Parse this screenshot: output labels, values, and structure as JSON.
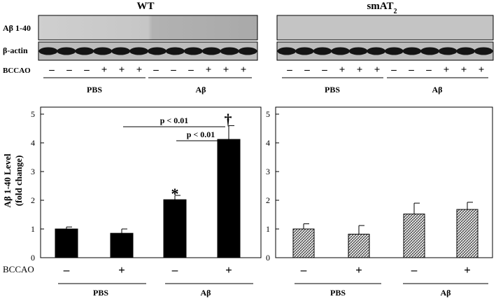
{
  "blot": {
    "wt_title": "WT",
    "smat2_title": "smAT",
    "smat2_subscript": "2",
    "row_labels": [
      "Aβ 1-40",
      "β-actin",
      "BCCAO"
    ],
    "bccao_signs": [
      "–",
      "–",
      "–",
      "+",
      "+",
      "+",
      "–",
      "–",
      "–",
      "+",
      "+",
      "+"
    ],
    "group_labels": [
      "PBS",
      "Aβ"
    ]
  },
  "colors": {
    "wt_bar": "#000000",
    "smat2_bar": "hatched"
  },
  "chart_data": [
    {
      "type": "bar",
      "panel": "WT",
      "categories": [
        "PBS –",
        "PBS +",
        "Aβ –",
        "Aβ +"
      ],
      "values": [
        1.0,
        0.85,
        2.02,
        4.12
      ],
      "errors": [
        0.07,
        0.15,
        0.15,
        0.48
      ],
      "ylabel_line1": "Aβ 1-40 Level",
      "ylabel_line2": "(fold change)",
      "ylim": [
        0,
        5
      ],
      "yticks": [
        "0",
        "1",
        "2",
        "3",
        "4",
        "5"
      ],
      "bccao_label": "BCCAO",
      "bccao_signs": [
        "–",
        "+",
        "–",
        "+"
      ],
      "group_labels": [
        "PBS",
        "Aβ"
      ],
      "annotations": [
        "p < 0.01",
        "p < 0.01",
        "*",
        "†"
      ]
    },
    {
      "type": "bar",
      "panel": "smAT2",
      "categories": [
        "PBS –",
        "PBS +",
        "Aβ –",
        "Aβ +"
      ],
      "values": [
        1.0,
        0.82,
        1.52,
        1.68
      ],
      "errors": [
        0.18,
        0.3,
        0.38,
        0.25
      ],
      "ylim": [
        0,
        5
      ],
      "yticks": [
        "0",
        "1",
        "2",
        "3",
        "4",
        "5"
      ],
      "bccao_signs": [
        "–",
        "+",
        "–",
        "+"
      ],
      "group_labels": [
        "PBS",
        "Aβ"
      ]
    }
  ]
}
